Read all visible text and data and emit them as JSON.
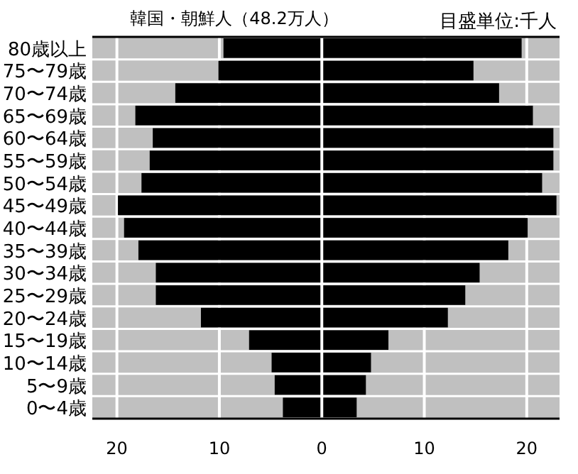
{
  "chart_data": {
    "type": "bar",
    "orientation": "horizontal",
    "title": "韓国・朝鮮人（48.2万人）",
    "annotations": [
      "目盛単位:千人"
    ],
    "categories": [
      "80歳以上",
      "75〜79歳",
      "70〜74歳",
      "65〜69歳",
      "60〜64歳",
      "55〜59歳",
      "50〜54歳",
      "45〜49歳",
      "40〜44歳",
      "35〜39歳",
      "30〜34歳",
      "25〜29歳",
      "20〜24歳",
      "15〜19歳",
      "10〜14歳",
      "5〜9歳",
      "0〜4歳"
    ],
    "series": [
      {
        "color": "#000000",
        "values": [
          -9.6,
          -10.1,
          -14.3,
          -18.2,
          -16.5,
          -16.8,
          -17.6,
          -19.9,
          -19.3,
          -17.9,
          -16.2,
          -16.2,
          -11.8,
          -7.1,
          -4.9,
          -4.6,
          -3.8
        ]
      },
      {
        "color": "#000000",
        "values": [
          19.5,
          14.8,
          17.3,
          20.6,
          22.6,
          22.6,
          21.5,
          22.9,
          20.1,
          18.2,
          15.4,
          14.0,
          12.3,
          6.5,
          4.8,
          4.3,
          3.4
        ]
      }
    ],
    "xlim": [
      -22.4,
      23.2
    ],
    "xticks": [
      {
        "value": -20,
        "label": "20"
      },
      {
        "value": -10,
        "label": "10"
      },
      0,
      10,
      20
    ],
    "stacked": true,
    "grid": "x"
  }
}
